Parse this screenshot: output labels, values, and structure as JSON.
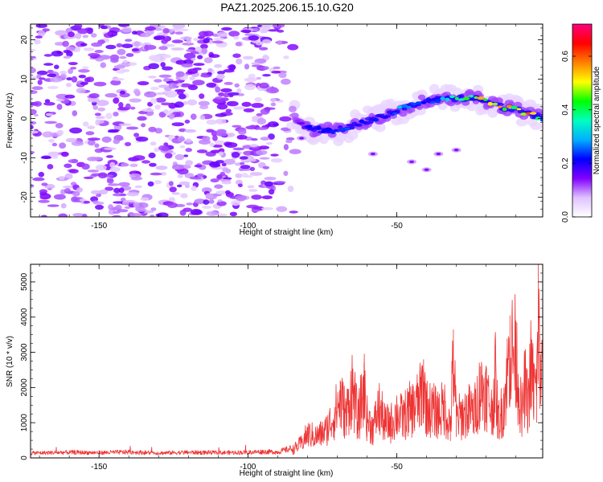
{
  "title": "PAZ1.2025.206.15.10.G20",
  "chart_data": [
    {
      "type": "heatmap",
      "xlabel": "Height of straight line (km)",
      "ylabel": "Frequency (Hz)",
      "xlim": [
        -173,
        -1
      ],
      "ylim": [
        -25,
        24
      ],
      "x_ticks": [
        -150,
        -100,
        -50
      ],
      "x_tick_labels": [
        "-150",
        "-100",
        "-50"
      ],
      "y_ticks": [
        -20,
        -10,
        0,
        10,
        20
      ],
      "y_tick_labels": [
        "-20",
        "-10",
        "0",
        "10",
        "20"
      ],
      "colorbar": {
        "label": "Normalized spectral amplitude",
        "range": [
          0.0,
          0.72
        ],
        "ticks": [
          0.0,
          0.2,
          0.4,
          0.6
        ],
        "tick_labels": [
          "0.0",
          "0.2",
          "0.4",
          "0.6"
        ],
        "colors": [
          "#ffffff",
          "#e0c2ff",
          "#8000ff",
          "#0000ff",
          "#00b0ff",
          "#00ffc0",
          "#00ff00",
          "#ffff00",
          "#ff8000",
          "#ff0000",
          "#ff0080"
        ]
      },
      "noise_region": {
        "x_range": [
          -173,
          -85
        ],
        "freq_range": [
          -25,
          24
        ],
        "amplitude": 0.1
      },
      "signal_ridge": {
        "x": [
          -85,
          -80,
          -75,
          -70,
          -65,
          -60,
          -55,
          -50,
          -45,
          -40,
          -35,
          -30,
          -25,
          -20,
          -15,
          -10,
          -5,
          -1
        ],
        "freq": [
          1,
          -2.5,
          -3,
          -3,
          -2,
          -0.5,
          0.5,
          2,
          3.5,
          4.5,
          5,
          5,
          5.5,
          4.5,
          3,
          2.5,
          1,
          0
        ],
        "amplitude": [
          0.1,
          0.2,
          0.25,
          0.22,
          0.25,
          0.22,
          0.2,
          0.28,
          0.3,
          0.28,
          0.35,
          0.4,
          0.5,
          0.55,
          0.65,
          0.45,
          0.6,
          0.3
        ]
      }
    },
    {
      "type": "line",
      "xlabel": "Height of straight line (km)",
      "ylabel": "SNR (10 * v/v)",
      "xlim": [
        -173,
        -1
      ],
      "ylim": [
        0,
        5500
      ],
      "x_ticks": [
        -150,
        -100,
        -50
      ],
      "x_tick_labels": [
        "-150",
        "-100",
        "-50"
      ],
      "y_ticks": [
        0,
        1000,
        2000,
        3000,
        4000,
        5000
      ],
      "y_tick_labels": [
        "0",
        "1000",
        "2000",
        "3000",
        "4000",
        "5000"
      ],
      "color": "#ee3333",
      "series": [
        {
          "x": [
            -173,
            -160,
            -150,
            -140,
            -130,
            -120,
            -110,
            -100,
            -95,
            -90,
            -85,
            -82,
            -80,
            -77,
            -74,
            -71,
            -69,
            -67,
            -65,
            -63,
            -61,
            -60,
            -58,
            -56,
            -54,
            -52,
            -50,
            -48,
            -46,
            -44,
            -42,
            -41,
            -40,
            -38,
            -36,
            -34,
            -32,
            -31,
            -30,
            -28,
            -26,
            -24,
            -22,
            -20,
            -18,
            -17,
            -16,
            -14,
            -12,
            -10,
            -8,
            -7,
            -6,
            -5,
            -4,
            -3,
            -2.5,
            -2,
            -1
          ],
          "y": [
            150,
            170,
            160,
            180,
            150,
            170,
            160,
            170,
            190,
            180,
            300,
            550,
            900,
            800,
            1000,
            1600,
            2200,
            1600,
            2700,
            1400,
            2700,
            1500,
            1100,
            1900,
            1300,
            1300,
            1700,
            1500,
            1800,
            1900,
            2300,
            2800,
            1900,
            1800,
            1700,
            1900,
            1200,
            3650,
            1500,
            1600,
            1800,
            1700,
            2600,
            2500,
            1700,
            3200,
            1400,
            2000,
            4050,
            3900,
            1500,
            2800,
            2000,
            3400,
            2700,
            2500,
            5500,
            3500,
            3000
          ]
        }
      ]
    }
  ]
}
